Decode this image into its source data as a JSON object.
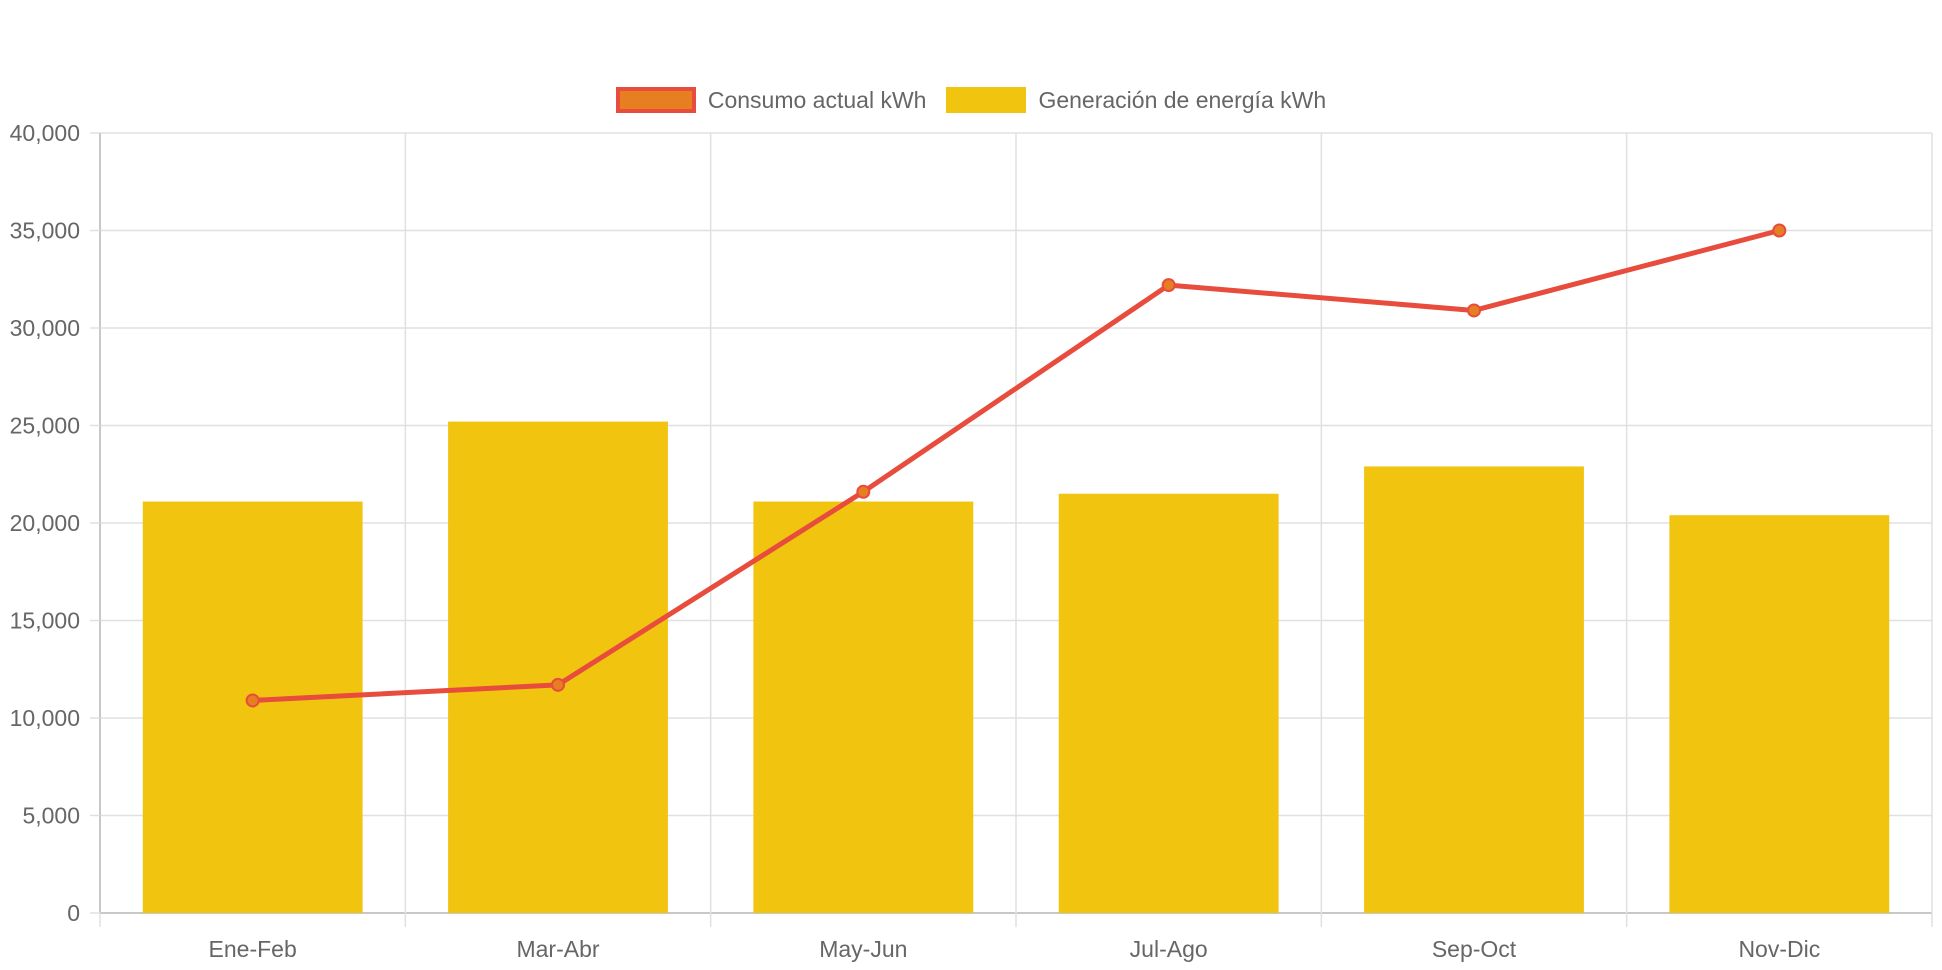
{
  "chart_data": {
    "type": "bar",
    "categories": [
      "Ene-Feb",
      "Mar-Abr",
      "May-Jun",
      "Jul-Ago",
      "Sep-Oct",
      "Nov-Dic"
    ],
    "series": [
      {
        "name": "Consumo actual kWh",
        "type": "line",
        "values": [
          10900,
          11700,
          21600,
          32200,
          30900,
          35000
        ],
        "color": "#e74c3c",
        "point_color": "#e67e22"
      },
      {
        "name": "Generación de energía kWh",
        "type": "bar",
        "values": [
          21100,
          25200,
          21100,
          21500,
          22900,
          20400
        ],
        "color": "#f1c40f"
      }
    ],
    "ylim": [
      0,
      40000
    ],
    "yticks": [
      "0",
      "5,000",
      "10,000",
      "15,000",
      "20,000",
      "25,000",
      "30,000",
      "35,000",
      "40,000"
    ],
    "ytick_values": [
      0,
      5000,
      10000,
      15000,
      20000,
      25000,
      30000,
      35000,
      40000
    ],
    "grid": true,
    "legend_position": "top-center",
    "grid_color": "#e0e0e0",
    "axis_color": "#c8c8c8"
  }
}
